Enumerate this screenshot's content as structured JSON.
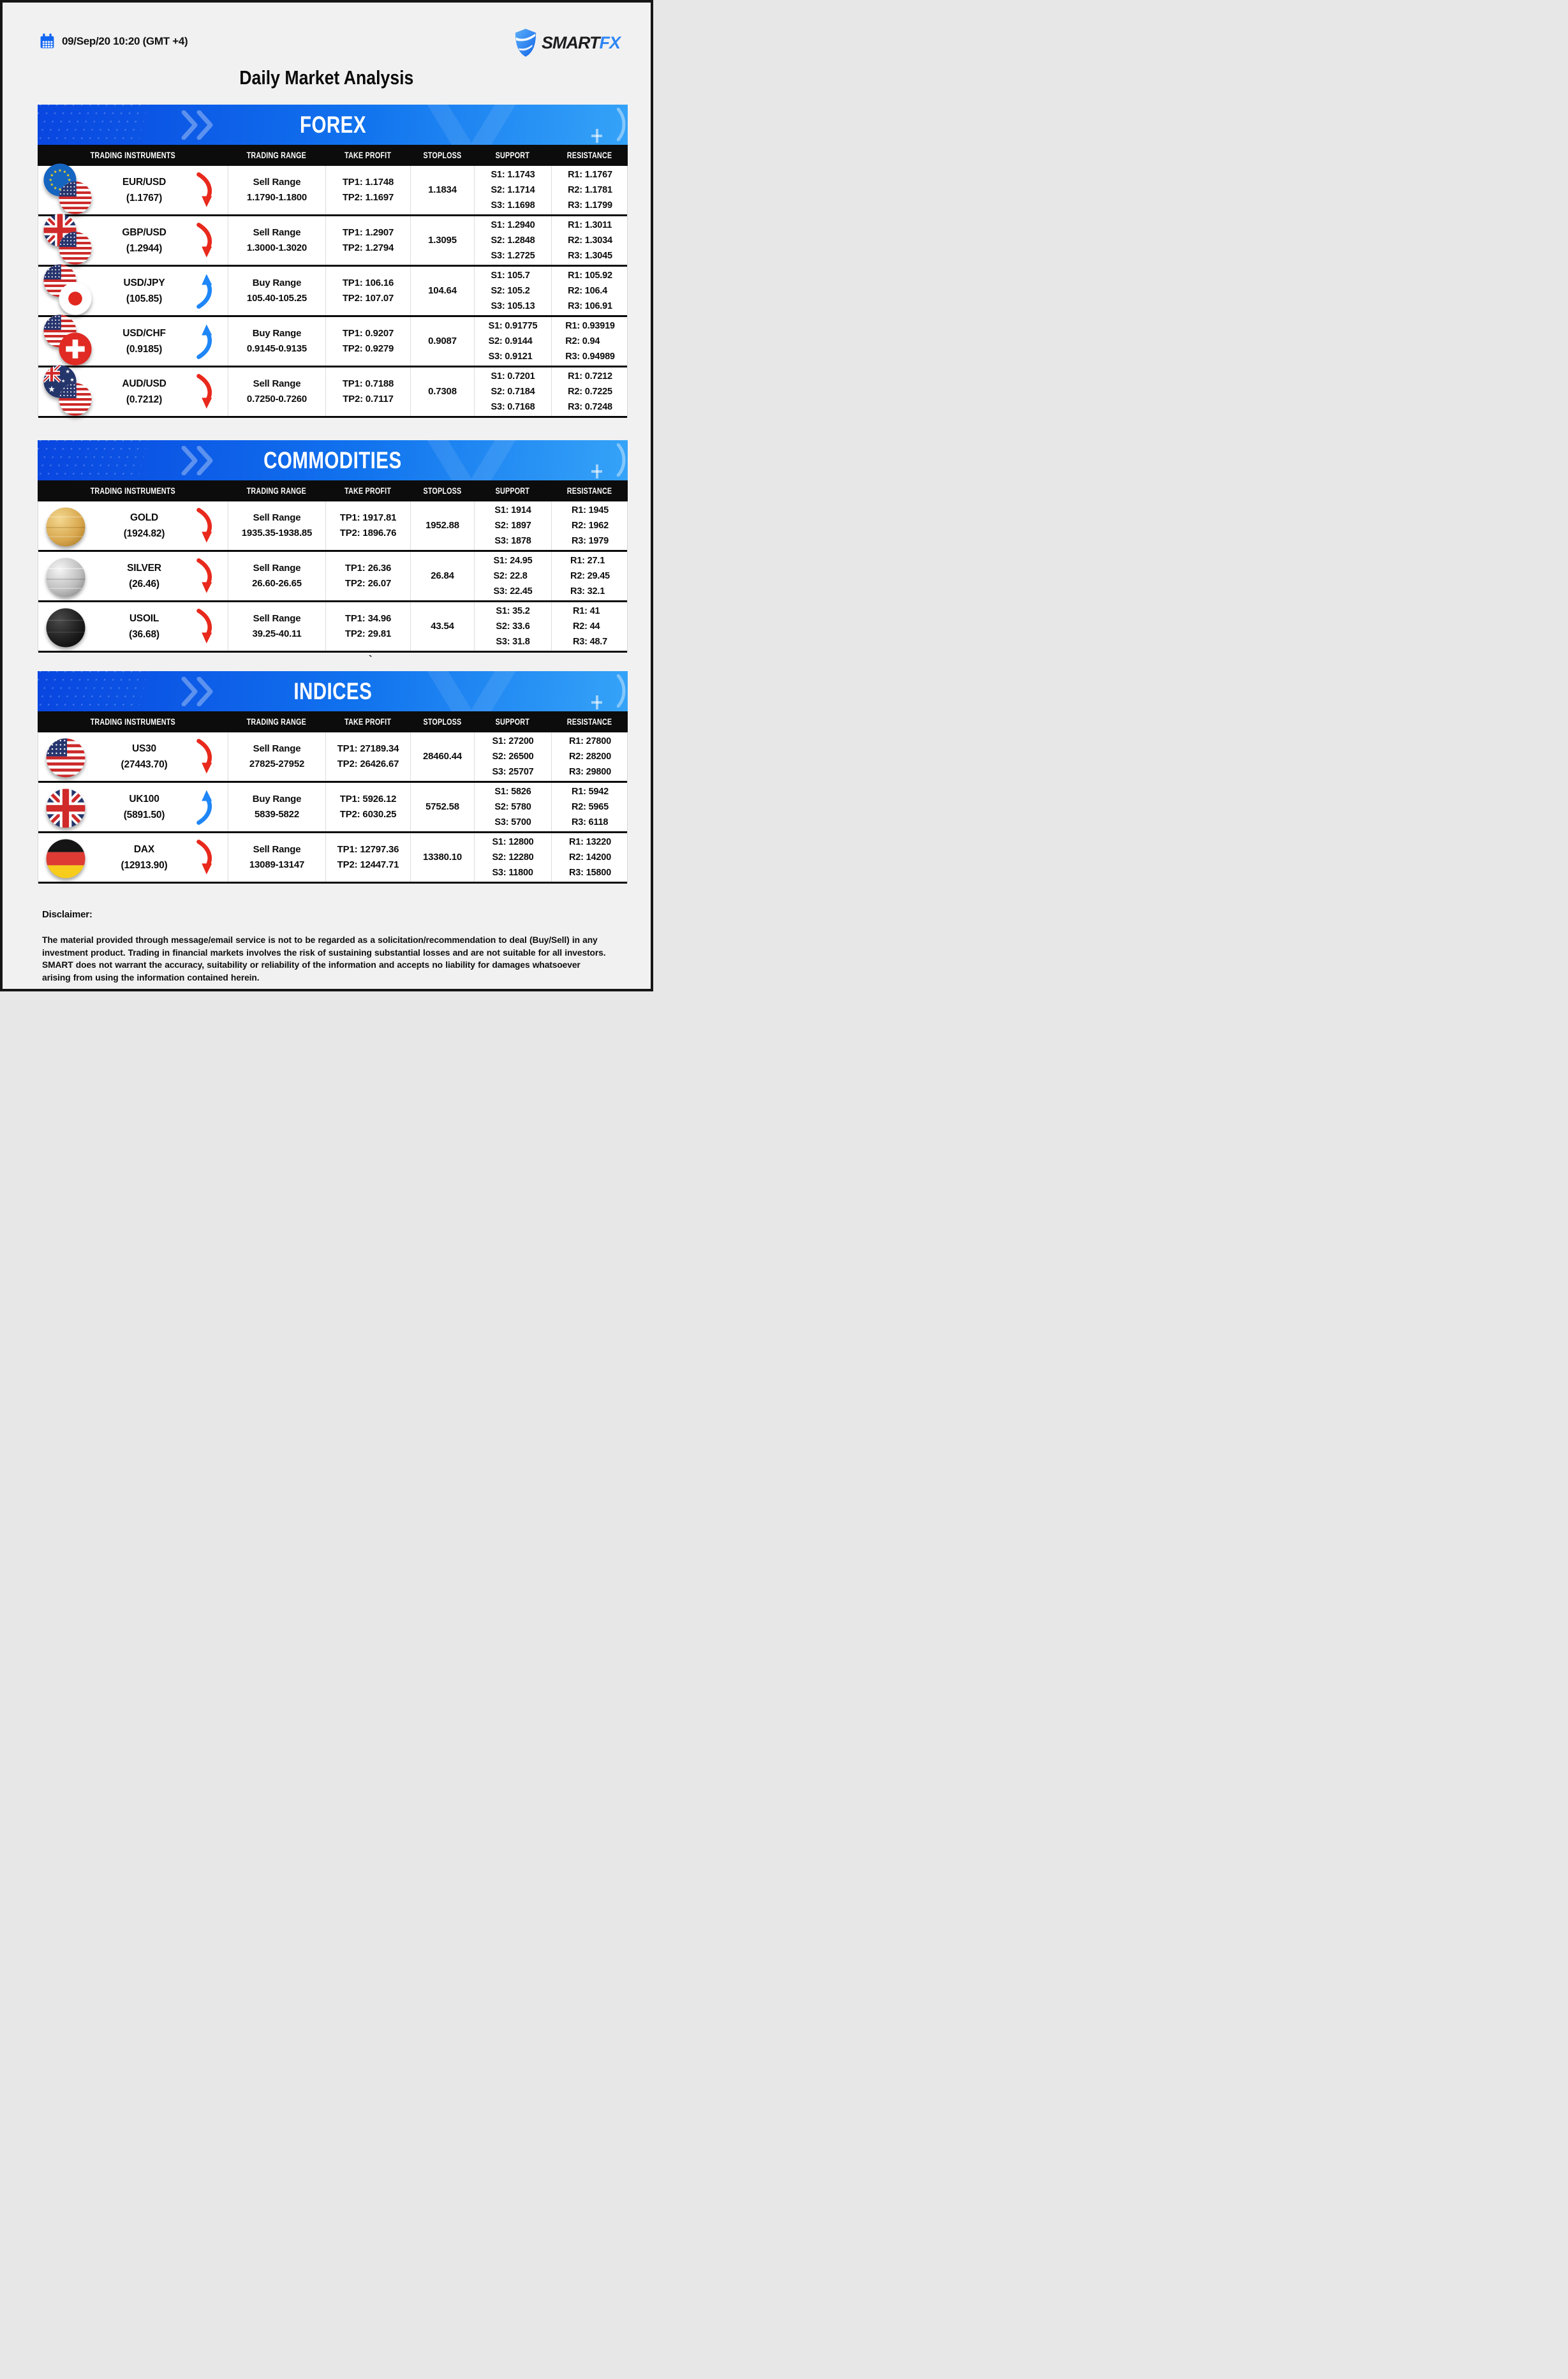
{
  "header": {
    "datetime": "09/Sep/20 10:20 (GMT +4)",
    "logo_smart": "SMART",
    "logo_fx": "FX",
    "title": "Daily Market Analysis"
  },
  "colors": {
    "banner_left": "#0946e0",
    "banner_right": "#35a3f8",
    "header_bar": "#0c0c0c",
    "sell_red": "#e8291c",
    "buy_blue": "#1e86f7",
    "accent_blue": "#2e86f5"
  },
  "columns": [
    "TRADING INSTRUMENTS",
    "TRADING RANGE",
    "TAKE PROFIT",
    "STOPLOSS",
    "SUPPORT",
    "RESISTANCE"
  ],
  "stray_mark": "`",
  "sections": [
    {
      "title": "FOREX",
      "rows": [
        {
          "instrument": "EUR/USD",
          "price": "(1.1767)",
          "icons": [
            "eu",
            "us"
          ],
          "trend": "down",
          "range_label": "Sell Range",
          "range_value": "1.1790-1.1800",
          "take_profit": [
            "TP1: 1.1748",
            "TP2: 1.1697"
          ],
          "stoploss": "1.1834",
          "support": [
            "S1: 1.1743",
            "S2: 1.1714",
            "S3: 1.1698"
          ],
          "resistance": [
            "R1: 1.1767",
            "R2: 1.1781",
            "R3: 1.1799"
          ]
        },
        {
          "instrument": "GBP/USD",
          "price": "(1.2944)",
          "icons": [
            "uk",
            "us"
          ],
          "trend": "down",
          "range_label": "Sell Range",
          "range_value": "1.3000-1.3020",
          "take_profit": [
            "TP1: 1.2907",
            "TP2: 1.2794"
          ],
          "stoploss": "1.3095",
          "support": [
            "S1: 1.2940",
            "S2: 1.2848",
            "S3: 1.2725"
          ],
          "resistance": [
            "R1: 1.3011",
            "R2: 1.3034",
            "R3: 1.3045"
          ]
        },
        {
          "instrument": "USD/JPY",
          "price": "(105.85)",
          "icons": [
            "us",
            "jp"
          ],
          "trend": "up",
          "range_label": "Buy Range",
          "range_value": "105.40-105.25",
          "take_profit": [
            "TP1: 106.16",
            "TP2: 107.07"
          ],
          "stoploss": "104.64",
          "support": [
            "S1: 105.7",
            "S2: 105.2",
            "S3: 105.13"
          ],
          "resistance": [
            "R1: 105.92",
            "R2: 106.4",
            "R3: 106.91"
          ]
        },
        {
          "instrument": "USD/CHF",
          "price": "(0.9185)",
          "icons": [
            "us",
            "ch"
          ],
          "trend": "up",
          "range_label": "Buy Range",
          "range_value": "0.9145-0.9135",
          "take_profit": [
            "TP1: 0.9207",
            "TP2: 0.9279"
          ],
          "stoploss": "0.9087",
          "support": [
            "S1: 0.91775",
            "S2: 0.9144",
            "S3: 0.9121"
          ],
          "resistance": [
            "R1: 0.93919",
            "R2: 0.94",
            "R3: 0.94989"
          ]
        },
        {
          "instrument": "AUD/USD",
          "price": "(0.7212)",
          "icons": [
            "au",
            "us"
          ],
          "trend": "down",
          "range_label": "Sell Range",
          "range_value": "0.7250-0.7260",
          "take_profit": [
            "TP1: 0.7188",
            "TP2: 0.7117"
          ],
          "stoploss": "0.7308",
          "support": [
            "S1: 0.7201",
            "S2: 0.7184",
            "S3: 0.7168"
          ],
          "resistance": [
            "R1: 0.7212",
            "R2: 0.7225",
            "R3: 0.7248"
          ]
        }
      ]
    },
    {
      "title": "COMMODITIES",
      "rows": [
        {
          "instrument": "GOLD",
          "price": "(1924.82)",
          "icons": [
            "gold"
          ],
          "trend": "down",
          "range_label": "Sell Range",
          "range_value": "1935.35-1938.85",
          "take_profit": [
            "TP1: 1917.81",
            "TP2: 1896.76"
          ],
          "stoploss": "1952.88",
          "support": [
            "S1: 1914",
            "S2: 1897",
            "S3: 1878"
          ],
          "resistance": [
            "R1: 1945",
            "R2: 1962",
            "R3: 1979"
          ]
        },
        {
          "instrument": "SILVER",
          "price": "(26.46)",
          "icons": [
            "silver"
          ],
          "trend": "down",
          "range_label": "Sell Range",
          "range_value": "26.60-26.65",
          "take_profit": [
            "TP1: 26.36",
            "TP2: 26.07"
          ],
          "stoploss": "26.84",
          "support": [
            "S1: 24.95",
            "S2: 22.8",
            "S3: 22.45"
          ],
          "resistance": [
            "R1: 27.1",
            "R2: 29.45",
            "R3: 32.1"
          ]
        },
        {
          "instrument": "USOIL",
          "price": "(36.68)",
          "icons": [
            "oil"
          ],
          "trend": "down",
          "range_label": "Sell Range",
          "range_value": "39.25-40.11",
          "take_profit": [
            "TP1: 34.96",
            "TP2: 29.81"
          ],
          "stoploss": "43.54",
          "support": [
            "S1: 35.2",
            "S2: 33.6",
            "S3: 31.8"
          ],
          "resistance": [
            "R1: 41",
            "R2: 44",
            "R3: 48.7"
          ]
        }
      ]
    },
    {
      "title": "INDICES",
      "rows": [
        {
          "instrument": "US30",
          "price": "(27443.70)",
          "icons": [
            "us"
          ],
          "trend": "down",
          "range_label": "Sell Range",
          "range_value": "27825-27952",
          "take_profit": [
            "TP1: 27189.34",
            "TP2: 26426.67"
          ],
          "stoploss": "28460.44",
          "support": [
            "S1: 27200",
            "S2: 26500",
            "S3: 25707"
          ],
          "resistance": [
            "R1: 27800",
            "R2: 28200",
            "R3: 29800"
          ]
        },
        {
          "instrument": "UK100",
          "price": "(5891.50)",
          "icons": [
            "uk"
          ],
          "trend": "up",
          "range_label": "Buy Range",
          "range_value": "5839-5822",
          "take_profit": [
            "TP1: 5926.12",
            "TP2: 6030.25"
          ],
          "stoploss": "5752.58",
          "support": [
            "S1: 5826",
            "S2: 5780",
            "S3: 5700"
          ],
          "resistance": [
            "R1: 5942",
            "R2: 5965",
            "R3: 6118"
          ]
        },
        {
          "instrument": "DAX",
          "price": "(12913.90)",
          "icons": [
            "de"
          ],
          "trend": "down",
          "range_label": "Sell Range",
          "range_value": "13089-13147",
          "take_profit": [
            "TP1: 12797.36",
            "TP2: 12447.71"
          ],
          "stoploss": "13380.10",
          "support": [
            "S1: 12800",
            "S2: 12280",
            "S3: 11800"
          ],
          "resistance": [
            "R1: 13220",
            "R2: 14200",
            "R3: 15800"
          ]
        }
      ]
    }
  ],
  "disclaimer": {
    "label": "Disclaimer:",
    "text": "The material provided through message/email service is not to be regarded as a solicitation/recommendation to deal (Buy/Sell) in any investment product. Trading in financial markets involves the risk of sustaining substantial losses and are not suitable for all investors. SMART does not warrant the accuracy, suitability or reliability of the information and accepts no liability for damages whatsoever arising from using the information contained herein."
  }
}
